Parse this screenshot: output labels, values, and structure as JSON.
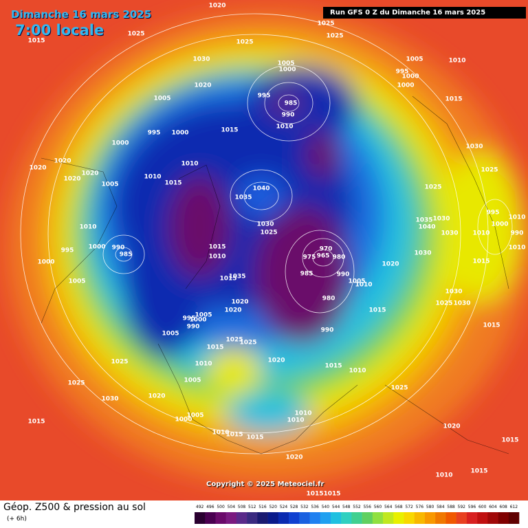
{
  "header": {
    "date": "Dimanche 16 mars 2025",
    "time": "7:00 locale",
    "run": "Run GFS 0 Z du Dimanche 16 mars 2025"
  },
  "copyright": "Copyright © 2025 Meteociel.fr",
  "footer": {
    "title": "Géop. Z500 & pression au sol",
    "subtitle": "(+ 6h)"
  },
  "colorbar": {
    "labels": [
      "492",
      "496",
      "500",
      "504",
      "508",
      "512",
      "516",
      "520",
      "524",
      "528",
      "532",
      "536",
      "540",
      "544",
      "548",
      "552",
      "556",
      "560",
      "564",
      "568",
      "572",
      "576",
      "580",
      "584",
      "588",
      "592",
      "596",
      "600",
      "604",
      "608",
      "612"
    ],
    "colors": [
      "#2a0030",
      "#4a0050",
      "#6a0a6a",
      "#7a1a80",
      "#5a2a8a",
      "#3a2a80",
      "#1a1a70",
      "#0a1a8a",
      "#0a2ab0",
      "#1040d0",
      "#1a60e0",
      "#2080f0",
      "#20a0f0",
      "#20c0e0",
      "#30d0c0",
      "#40d090",
      "#60d060",
      "#90e040",
      "#c0e820",
      "#e8f000",
      "#f8d800",
      "#f8b800",
      "#f89800",
      "#f07800",
      "#f05800",
      "#e84020",
      "#d82020",
      "#c01010",
      "#a00808",
      "#800000",
      "#600000"
    ]
  },
  "pressure_labels": [
    "1020",
    "1025",
    "1025",
    "1015",
    "1025",
    "1025",
    "1030",
    "1005",
    "1000",
    "1005",
    "1010",
    "995",
    "1000",
    "1020",
    "1000",
    "995",
    "985",
    "1005",
    "1015",
    "990",
    "1010",
    "995",
    "1000",
    "1015",
    "1000",
    "1030",
    "1020",
    "1020",
    "1010",
    "1020",
    "1020",
    "1010",
    "1015",
    "1005",
    "1025",
    "1040",
    "1035",
    "1025",
    "1035",
    "1040",
    "1030",
    "995",
    "1000",
    "1010",
    "1030",
    "1025",
    "1010",
    "1030",
    "1010",
    "990",
    "1010",
    "1000",
    "990",
    "985",
    "995",
    "1015",
    "1010",
    "970",
    "965",
    "975",
    "980",
    "1030",
    "1015",
    "1000",
    "1020",
    "985",
    "990",
    "1005",
    "1010",
    "1035",
    "1015",
    "1005",
    "980",
    "1030",
    "1030",
    "1025",
    "1020",
    "1020",
    "1005",
    "1000",
    "995",
    "990",
    "1015",
    "1015",
    "990",
    "1005",
    "1025",
    "1025",
    "1015",
    "1025",
    "1010",
    "1020",
    "1015",
    "1010",
    "1005",
    "1025",
    "1025",
    "1020",
    "1030",
    "1005",
    "1000",
    "1015",
    "1010",
    "1010",
    "1015",
    "1015",
    "1010",
    "1020",
    "1015",
    "1020",
    "1015",
    "1010",
    "1015",
    "1015"
  ]
}
